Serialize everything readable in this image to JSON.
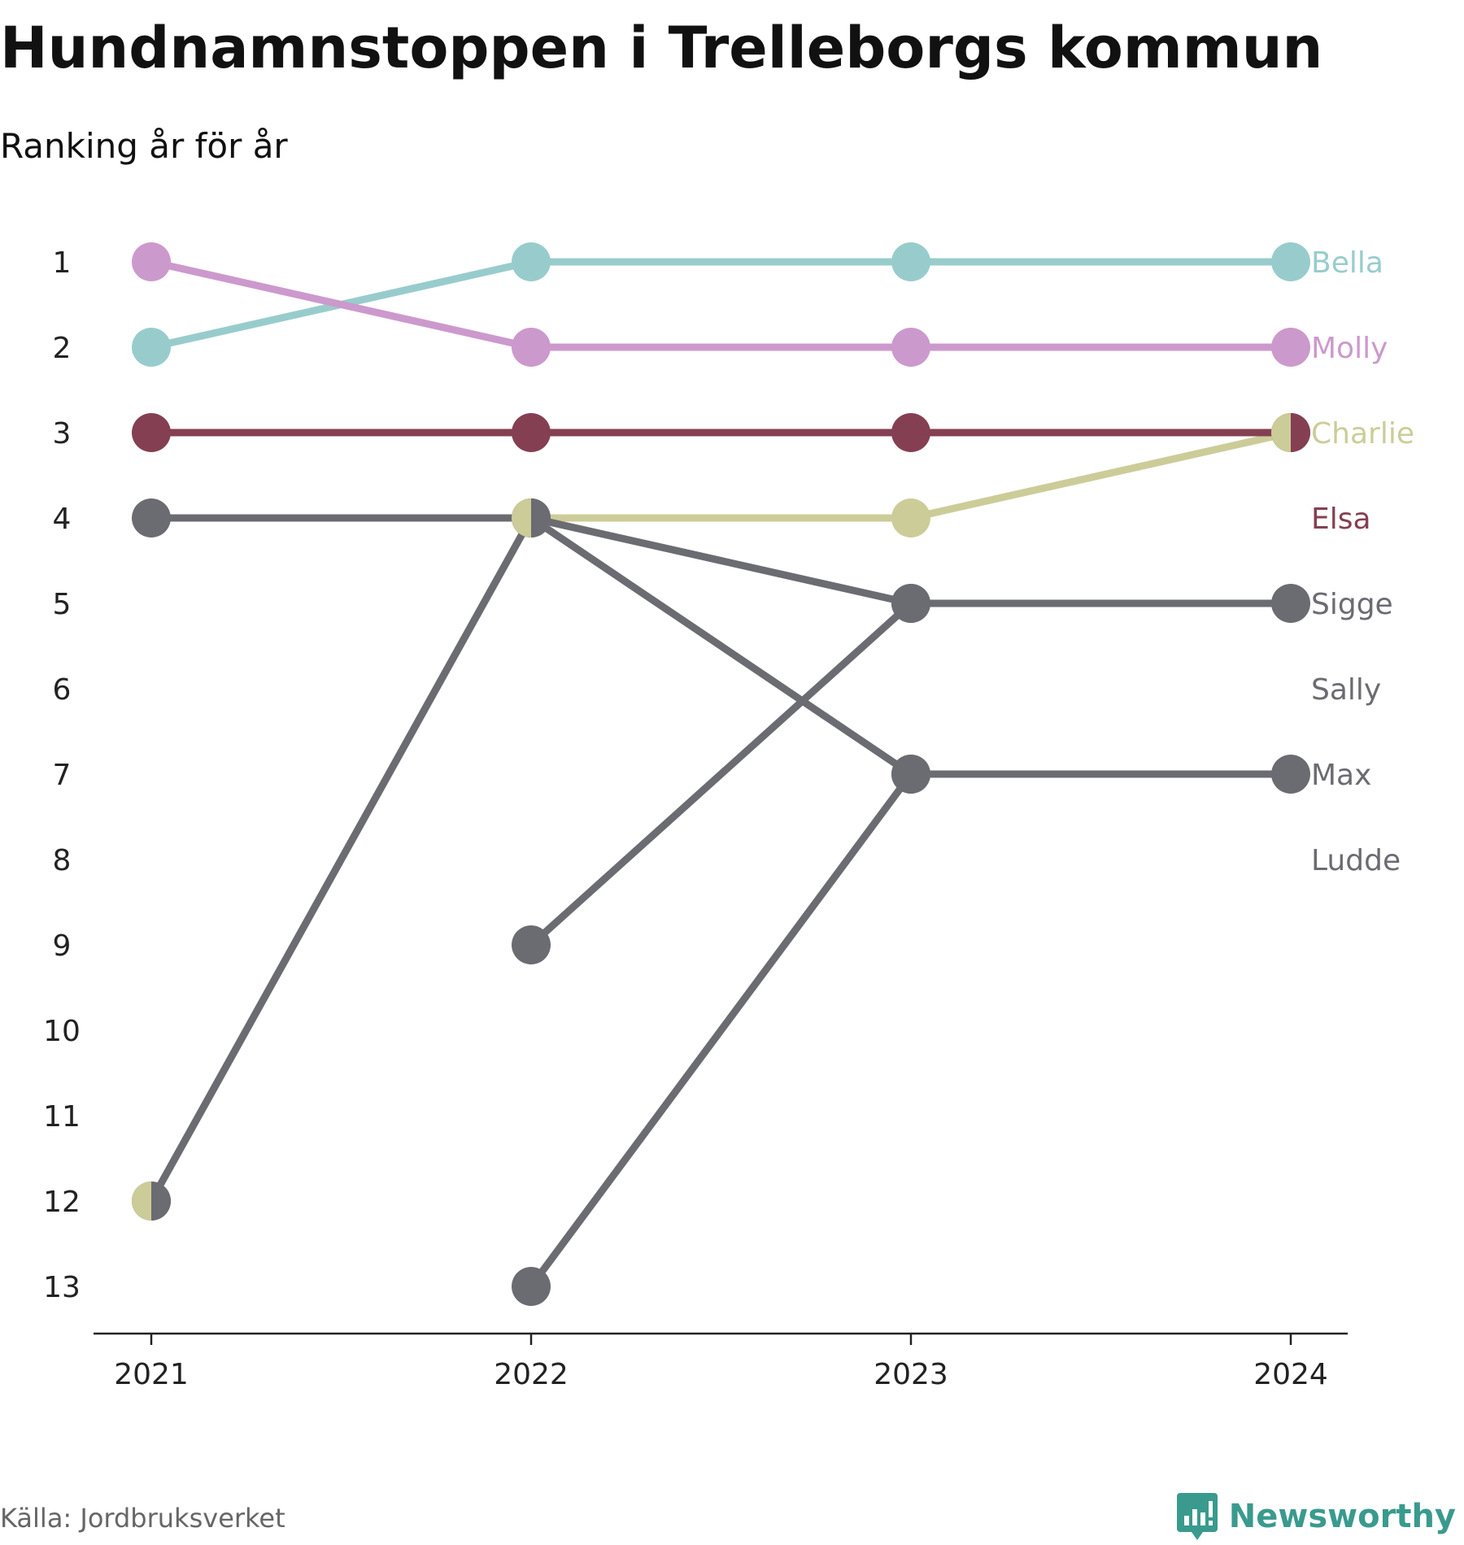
{
  "header": {
    "title": "Hundnamnstoppen i Trelleborgs kommun",
    "subtitle": "Ranking år för år"
  },
  "footer": {
    "source": "Källa: Jordbruksverket",
    "brand": "Newsworthy"
  },
  "icons": {
    "brand_logo": "bar-chart-speech-bubble-icon"
  },
  "chart_data": {
    "type": "line",
    "title": "Hundnamnstoppen i Trelleborgs kommun",
    "subtitle": "Ranking år för år",
    "x": [
      "2021",
      "2022",
      "2023",
      "2024"
    ],
    "y_ticks": [
      1,
      2,
      3,
      4,
      5,
      6,
      7,
      8,
      9,
      10,
      11,
      12,
      13
    ],
    "ylim": [
      1,
      13
    ],
    "y_inverted": true,
    "grid": false,
    "legend": "end-labels-right",
    "series": [
      {
        "name": "Bella",
        "color": "#98cccc",
        "values": [
          2,
          1,
          1,
          1
        ]
      },
      {
        "name": "Molly",
        "color": "#cc99cc",
        "values": [
          1,
          2,
          2,
          2
        ]
      },
      {
        "name": "Charlie",
        "color": "#cccc99",
        "values": [
          12,
          4,
          4,
          3
        ]
      },
      {
        "name": "Elsa",
        "color": "#853f52",
        "values": [
          3,
          3,
          3,
          3
        ]
      },
      {
        "name": "Sigge",
        "color": "#6b6b72",
        "values": [
          null,
          9,
          5,
          5
        ]
      },
      {
        "name": "Sally",
        "color": "#6b6b72",
        "values": [
          4,
          4,
          7,
          null
        ]
      },
      {
        "name": "Max",
        "color": "#6b6b72",
        "values": [
          null,
          13,
          7,
          7
        ]
      },
      {
        "name": "Ludde",
        "color": "#6b6b72",
        "values": [
          12,
          4,
          5,
          null
        ]
      }
    ]
  }
}
